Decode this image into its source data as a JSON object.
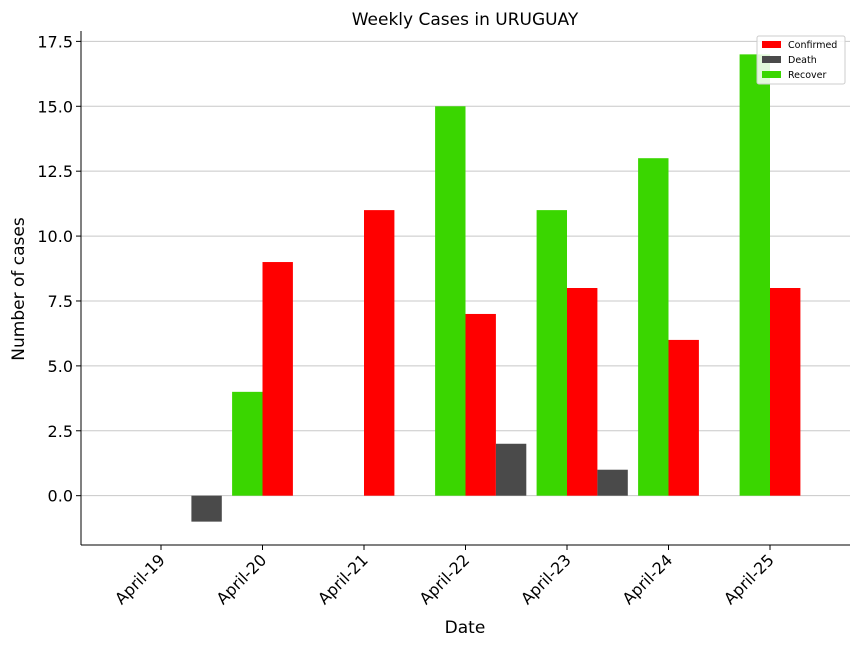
{
  "chart_data": {
    "type": "bar",
    "title": "Weekly Cases in URUGUAY",
    "xlabel": "Date",
    "ylabel": "Number of cases",
    "categories": [
      "April-19",
      "April-20",
      "April-21",
      "April-22",
      "April-23",
      "April-24",
      "April-25"
    ],
    "series": [
      {
        "name": "Confirmed",
        "color": "#ff0000",
        "values": [
          0,
          9,
          11,
          7,
          8,
          6,
          8
        ]
      },
      {
        "name": "Death",
        "color": "#4a4a4a",
        "values": [
          -1,
          0,
          0,
          2,
          1,
          0,
          0
        ]
      },
      {
        "name": "Recover",
        "color": "#3ad600",
        "values": [
          0,
          4,
          0,
          15,
          11,
          13,
          17
        ]
      }
    ],
    "ylim": [
      -1.9,
      17.9
    ],
    "yticks": [
      "0.0",
      "2.5",
      "5.0",
      "7.5",
      "10.0",
      "12.5",
      "15.0",
      "17.5"
    ],
    "grid": "horizontal",
    "legend_position": "top-right"
  }
}
